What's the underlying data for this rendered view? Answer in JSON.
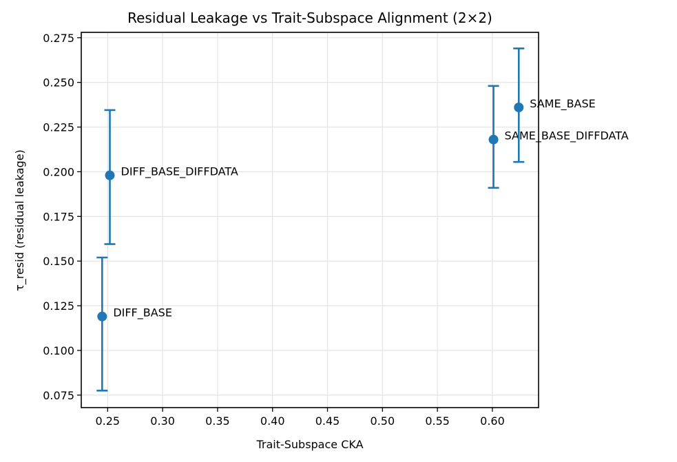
{
  "chart_data": {
    "type": "scatter",
    "title": "Residual Leakage vs Trait-Subspace Alignment (2×2)",
    "xlabel": "Trait-Subspace CKA",
    "ylabel": "τ_resid (residual leakage)",
    "xlim": [
      0.226,
      0.642
    ],
    "ylim": [
      0.068,
      0.278
    ],
    "xticks": [
      0.25,
      0.3,
      0.35,
      0.4,
      0.45,
      0.5,
      0.55,
      0.6
    ],
    "xtick_labels": [
      "0.25",
      "0.30",
      "0.35",
      "0.40",
      "0.45",
      "0.50",
      "0.55",
      "0.60"
    ],
    "yticks": [
      0.075,
      0.1,
      0.125,
      0.15,
      0.175,
      0.2,
      0.225,
      0.25,
      0.275
    ],
    "ytick_labels": [
      "0.075",
      "0.100",
      "0.125",
      "0.150",
      "0.175",
      "0.200",
      "0.225",
      "0.250",
      "0.275"
    ],
    "grid": true,
    "legend": null,
    "color": "#1f77b4",
    "points": [
      {
        "label": "DIFF_BASE",
        "x": 0.245,
        "y": 0.119,
        "y_low": 0.0775,
        "y_high": 0.152
      },
      {
        "label": "DIFF_BASE_DIFFDATA",
        "x": 0.252,
        "y": 0.198,
        "y_low": 0.1595,
        "y_high": 0.2345
      },
      {
        "label": "SAME_BASE_DIFFDATA",
        "x": 0.601,
        "y": 0.218,
        "y_low": 0.191,
        "y_high": 0.248
      },
      {
        "label": "SAME_BASE",
        "x": 0.624,
        "y": 0.236,
        "y_low": 0.2055,
        "y_high": 0.269
      }
    ]
  }
}
